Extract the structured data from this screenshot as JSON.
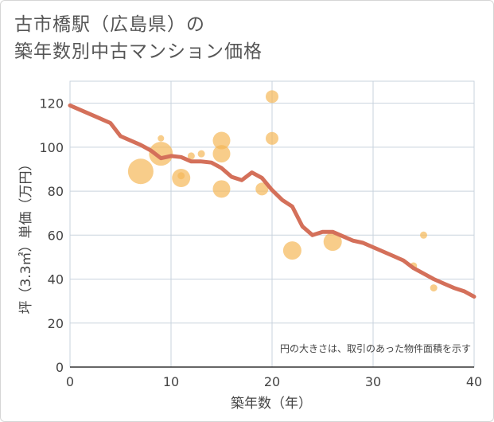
{
  "title": {
    "line1": "古市橋駅（広島県）の",
    "line2": "築年数別中古マンション価格"
  },
  "chart_data": {
    "type": "scatter",
    "xlabel": "築年数（年）",
    "ylabel": "坪（3.3㎡）単価（万円）",
    "xlim": [
      0,
      40
    ],
    "ylim": [
      0,
      130
    ],
    "xticks": [
      0,
      10,
      20,
      30,
      40
    ],
    "yticks": [
      0,
      20,
      40,
      60,
      80,
      100,
      120
    ],
    "grid": true,
    "note": "円の大きさは、取引のあった物件面積を示す",
    "colors": {
      "bubble": "#f5b858",
      "trend": "#d4705a",
      "grid": "#c9d3de"
    },
    "points": [
      {
        "x": 7,
        "y": 89,
        "size": 3.2
      },
      {
        "x": 9,
        "y": 104,
        "size": 0.8
      },
      {
        "x": 9,
        "y": 97,
        "size": 3.0
      },
      {
        "x": 11,
        "y": 87,
        "size": 0.9
      },
      {
        "x": 11,
        "y": 86,
        "size": 2.3
      },
      {
        "x": 12,
        "y": 96,
        "size": 0.9
      },
      {
        "x": 13,
        "y": 97,
        "size": 0.9
      },
      {
        "x": 15,
        "y": 103,
        "size": 2.2
      },
      {
        "x": 15,
        "y": 97,
        "size": 2.2
      },
      {
        "x": 15,
        "y": 81,
        "size": 2.2
      },
      {
        "x": 19,
        "y": 81,
        "size": 1.6
      },
      {
        "x": 20,
        "y": 123,
        "size": 1.6
      },
      {
        "x": 20,
        "y": 104,
        "size": 1.6
      },
      {
        "x": 22,
        "y": 53,
        "size": 2.3
      },
      {
        "x": 26,
        "y": 57,
        "size": 2.3
      },
      {
        "x": 34,
        "y": 46,
        "size": 0.9
      },
      {
        "x": 35,
        "y": 60,
        "size": 0.9
      },
      {
        "x": 36,
        "y": 36,
        "size": 0.9
      }
    ],
    "trend": {
      "x": [
        0,
        2,
        4,
        5,
        7,
        8,
        9,
        10,
        11,
        12,
        13,
        14,
        15,
        16,
        17,
        18,
        19,
        20,
        21,
        22,
        23,
        24,
        25,
        26,
        27,
        28,
        29,
        30,
        31,
        32,
        33,
        34,
        35,
        36,
        37,
        38,
        39,
        40
      ],
      "y": [
        119,
        115,
        111,
        105,
        101,
        98.5,
        95,
        96,
        95.5,
        93.5,
        93.5,
        93,
        90.5,
        86.5,
        85,
        88.5,
        86,
        80.5,
        76,
        73,
        64,
        60,
        61.5,
        61.5,
        59.5,
        57.5,
        56.5,
        54.5,
        52.5,
        50.5,
        48.5,
        45,
        42.5,
        40,
        38,
        36,
        34.5,
        32
      ]
    }
  }
}
